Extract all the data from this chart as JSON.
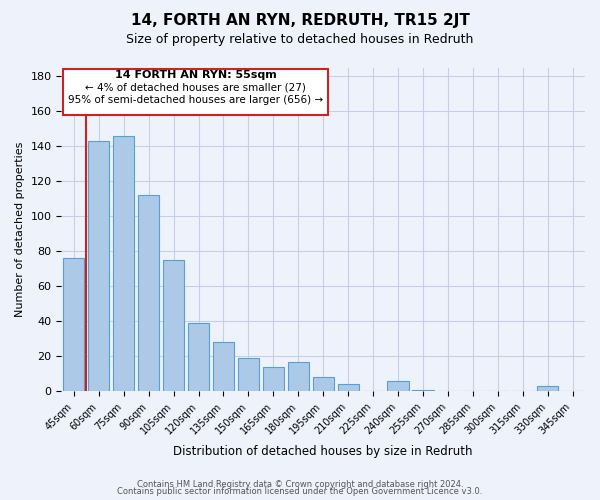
{
  "title": "14, FORTH AN RYN, REDRUTH, TR15 2JT",
  "subtitle": "Size of property relative to detached houses in Redruth",
  "xlabel": "Distribution of detached houses by size in Redruth",
  "ylabel": "Number of detached properties",
  "bar_values_full": [
    76,
    143,
    146,
    112,
    75,
    39,
    28,
    19,
    14,
    17,
    8,
    4,
    0,
    6,
    1,
    0,
    0,
    0,
    0,
    3,
    0
  ],
  "bar_labels": [
    "45sqm",
    "60sqm",
    "75sqm",
    "90sqm",
    "105sqm",
    "120sqm",
    "135sqm",
    "150sqm",
    "165sqm",
    "180sqm",
    "195sqm",
    "210sqm",
    "225sqm",
    "240sqm",
    "255sqm",
    "270sqm",
    "285sqm",
    "300sqm",
    "315sqm",
    "330sqm",
    "345sqm"
  ],
  "bar_color": "#adc9e8",
  "bar_edge_color": "#5a9fd4",
  "highlight_color": "#cc2222",
  "ylim": [
    0,
    185
  ],
  "yticks": [
    0,
    20,
    40,
    60,
    80,
    100,
    120,
    140,
    160,
    180
  ],
  "annotation_title": "14 FORTH AN RYN: 55sqm",
  "annotation_line1": "← 4% of detached houses are smaller (27)",
  "annotation_line2": "95% of semi-detached houses are larger (656) →",
  "annotation_box_edge": "#cc2222",
  "footer1": "Contains HM Land Registry data © Crown copyright and database right 2024.",
  "footer2": "Contains public sector information licensed under the Open Government Licence v3.0.",
  "background_color": "#eef2fb",
  "grid_color": "#c5cfe8"
}
